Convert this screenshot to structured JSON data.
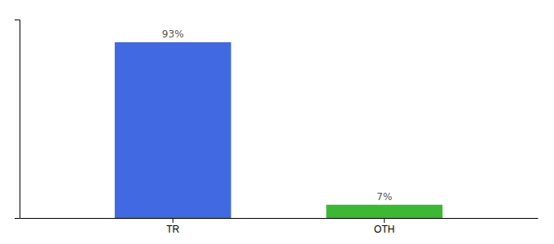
{
  "chart_data": {
    "type": "bar",
    "categories": [
      "TR",
      "OTH"
    ],
    "values": [
      93,
      7
    ],
    "value_labels": [
      "93%",
      "7%"
    ],
    "colors": [
      "#4169e1",
      "#3cb834"
    ],
    "ylim": [
      0,
      105
    ],
    "data_labels": true,
    "tick_labels": "x",
    "grid": false
  }
}
